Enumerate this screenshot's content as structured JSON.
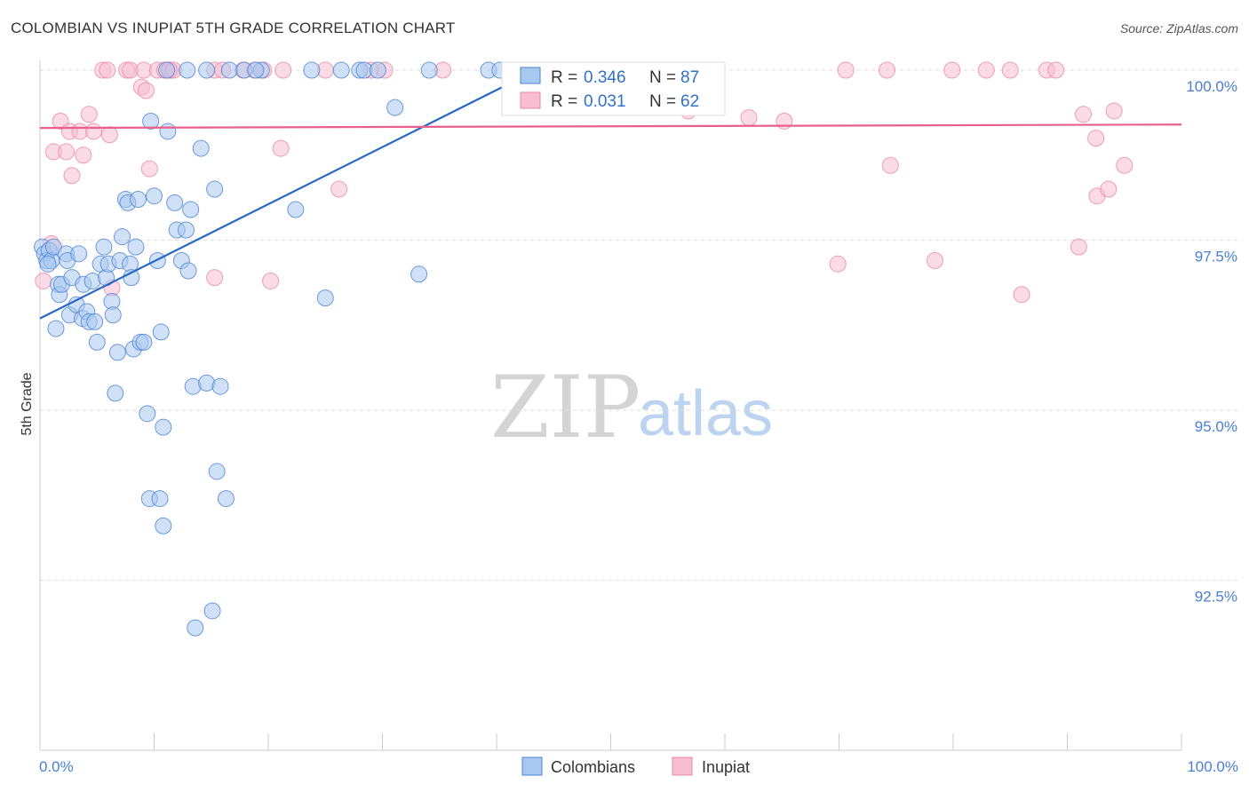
{
  "title": "COLOMBIAN VS INUPIAT 5TH GRADE CORRELATION CHART",
  "source": "Source: ZipAtlas.com",
  "watermark": {
    "zip": "ZIP",
    "atlas": "atlas"
  },
  "colors": {
    "colombians_fill": "#a9c8f0",
    "colombians_stroke": "#4a83d4",
    "colombians_line": "#2467c9",
    "inupiat_fill": "#f8bdd0",
    "inupiat_stroke": "#ea88a8",
    "inupiat_line": "#e8608b",
    "grid": "#dddddd",
    "tick_text": "#4a7fd0"
  },
  "stats": [
    {
      "r_label": "R =",
      "r_value": "0.346",
      "n_label": "N =",
      "n_value": "87"
    },
    {
      "r_label": "R =",
      "r_value": "0.031",
      "n_label": "N =",
      "n_value": "62"
    }
  ],
  "chart_data": {
    "type": "scatter",
    "title": "COLOMBIAN VS INUPIAT 5TH GRADE CORRELATION CHART",
    "xlabel": "",
    "ylabel": "5th Grade",
    "xlim": [
      0,
      100
    ],
    "ylim": [
      90.2,
      100.5
    ],
    "x_tick_labels": [
      "0.0%",
      "100.0%"
    ],
    "y_ticks": [
      100.0,
      97.5,
      95.0,
      92.5
    ],
    "y_tick_labels": [
      "100.0%",
      "97.5%",
      "95.0%",
      "92.5%"
    ],
    "legend": [
      "Colombians",
      "Inupiat"
    ],
    "series": [
      {
        "name": "Colombians",
        "trend": {
          "x": [
            0,
            40.5
          ],
          "y": [
            96.35,
            99.75
          ]
        },
        "points": [
          [
            0.2,
            97.4
          ],
          [
            0.4,
            97.3
          ],
          [
            0.6,
            97.2
          ],
          [
            0.8,
            97.35
          ],
          [
            1.0,
            97.2
          ],
          [
            1.2,
            97.4
          ],
          [
            1.4,
            96.2
          ],
          [
            1.6,
            96.85
          ],
          [
            1.7,
            96.7
          ],
          [
            1.9,
            96.85
          ],
          [
            2.3,
            97.3
          ],
          [
            2.4,
            97.2
          ],
          [
            2.6,
            96.4
          ],
          [
            2.8,
            96.95
          ],
          [
            3.2,
            96.55
          ],
          [
            3.4,
            97.3
          ],
          [
            3.7,
            96.35
          ],
          [
            3.8,
            96.85
          ],
          [
            4.1,
            96.45
          ],
          [
            4.3,
            96.3
          ],
          [
            4.6,
            96.9
          ],
          [
            4.8,
            96.3
          ],
          [
            5.0,
            96.0
          ],
          [
            5.3,
            97.15
          ],
          [
            5.6,
            97.4
          ],
          [
            5.8,
            96.95
          ],
          [
            6.0,
            97.15
          ],
          [
            6.3,
            96.6
          ],
          [
            6.4,
            96.4
          ],
          [
            6.6,
            95.25
          ],
          [
            6.8,
            95.85
          ],
          [
            7.0,
            97.2
          ],
          [
            7.2,
            97.55
          ],
          [
            7.5,
            98.1
          ],
          [
            7.7,
            98.05
          ],
          [
            7.9,
            97.15
          ],
          [
            8.0,
            96.95
          ],
          [
            8.2,
            95.9
          ],
          [
            8.4,
            97.4
          ],
          [
            8.6,
            98.1
          ],
          [
            8.8,
            96.0
          ],
          [
            9.1,
            96.0
          ],
          [
            9.4,
            94.95
          ],
          [
            9.6,
            93.7
          ],
          [
            9.7,
            99.25
          ],
          [
            10.0,
            98.15
          ],
          [
            10.3,
            97.2
          ],
          [
            10.5,
            93.7
          ],
          [
            10.6,
            96.15
          ],
          [
            10.8,
            93.3
          ],
          [
            10.8,
            94.75
          ],
          [
            11.2,
            99.1
          ],
          [
            11.8,
            98.05
          ],
          [
            12.0,
            97.65
          ],
          [
            12.4,
            97.2
          ],
          [
            12.8,
            97.65
          ],
          [
            13.0,
            97.05
          ],
          [
            13.2,
            97.95
          ],
          [
            13.4,
            95.35
          ],
          [
            13.6,
            91.8
          ],
          [
            14.1,
            98.85
          ],
          [
            14.6,
            95.4
          ],
          [
            15.3,
            98.25
          ],
          [
            15.1,
            92.05
          ],
          [
            15.5,
            94.1
          ],
          [
            15.8,
            95.35
          ],
          [
            16.3,
            93.7
          ],
          [
            16.6,
            100.0
          ],
          [
            14.6,
            100.0
          ],
          [
            12.9,
            100.0
          ],
          [
            11.1,
            100.0
          ],
          [
            17.9,
            100.0
          ],
          [
            19.4,
            100.0
          ],
          [
            22.4,
            97.95
          ],
          [
            23.8,
            100.0
          ],
          [
            25.0,
            96.65
          ],
          [
            26.4,
            100.0
          ],
          [
            28.0,
            100.0
          ],
          [
            28.4,
            100.0
          ],
          [
            29.6,
            100.0
          ],
          [
            31.1,
            99.45
          ],
          [
            33.2,
            97.0
          ],
          [
            34.1,
            100.0
          ],
          [
            39.3,
            100.0
          ],
          [
            40.3,
            100.0
          ],
          [
            0.7,
            97.15
          ],
          [
            18.9,
            100.0
          ]
        ]
      },
      {
        "name": "Inupiat",
        "trend": {
          "x": [
            0,
            100
          ],
          "y": [
            99.15,
            99.2
          ]
        },
        "points": [
          [
            0.3,
            96.9
          ],
          [
            1.0,
            97.45
          ],
          [
            1.2,
            98.8
          ],
          [
            1.8,
            99.25
          ],
          [
            2.3,
            98.8
          ],
          [
            2.6,
            99.1
          ],
          [
            2.8,
            98.45
          ],
          [
            3.5,
            99.1
          ],
          [
            3.8,
            98.75
          ],
          [
            4.3,
            99.35
          ],
          [
            4.7,
            99.1
          ],
          [
            5.5,
            100.0
          ],
          [
            5.9,
            100.0
          ],
          [
            6.1,
            99.05
          ],
          [
            6.3,
            96.8
          ],
          [
            7.6,
            100.0
          ],
          [
            7.9,
            100.0
          ],
          [
            9.1,
            100.0
          ],
          [
            8.9,
            99.75
          ],
          [
            9.3,
            99.7
          ],
          [
            9.6,
            98.55
          ],
          [
            10.3,
            100.0
          ],
          [
            10.9,
            100.0
          ],
          [
            11.4,
            100.0
          ],
          [
            11.3,
            100.0
          ],
          [
            11.7,
            100.0
          ],
          [
            15.3,
            100.0
          ],
          [
            16.0,
            100.0
          ],
          [
            15.3,
            96.95
          ],
          [
            17.8,
            100.0
          ],
          [
            18.8,
            100.0
          ],
          [
            19.6,
            100.0
          ],
          [
            20.2,
            96.9
          ],
          [
            21.1,
            98.85
          ],
          [
            21.3,
            100.0
          ],
          [
            25.0,
            100.0
          ],
          [
            26.2,
            98.25
          ],
          [
            29.0,
            100.0
          ],
          [
            30.2,
            100.0
          ],
          [
            35.3,
            100.0
          ],
          [
            50.2,
            100.0
          ],
          [
            56.8,
            99.4
          ],
          [
            62.1,
            99.3
          ],
          [
            65.2,
            99.25
          ],
          [
            69.9,
            97.15
          ],
          [
            70.6,
            100.0
          ],
          [
            74.2,
            100.0
          ],
          [
            74.5,
            98.6
          ],
          [
            78.4,
            97.2
          ],
          [
            79.9,
            100.0
          ],
          [
            82.9,
            100.0
          ],
          [
            85.0,
            100.0
          ],
          [
            86.0,
            96.7
          ],
          [
            88.2,
            100.0
          ],
          [
            89.0,
            100.0
          ],
          [
            91.0,
            97.4
          ],
          [
            91.4,
            99.35
          ],
          [
            92.5,
            99.0
          ],
          [
            92.6,
            98.15
          ],
          [
            93.6,
            98.25
          ],
          [
            94.1,
            99.4
          ],
          [
            95.0,
            98.6
          ]
        ]
      }
    ]
  },
  "legend_items": [
    {
      "label": "Colombians"
    },
    {
      "label": "Inupiat"
    }
  ]
}
